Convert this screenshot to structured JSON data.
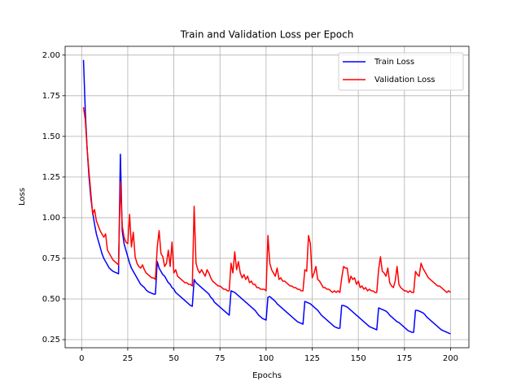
{
  "chart_data": {
    "type": "line",
    "title": "Train and Validation Loss per Epoch",
    "x_label": "Epochs",
    "y_label": "Loss",
    "x": [
      1,
      2,
      3,
      4,
      5,
      6,
      7,
      8,
      9,
      10,
      11,
      12,
      13,
      14,
      15,
      16,
      17,
      18,
      19,
      20,
      21,
      22,
      23,
      24,
      25,
      26,
      27,
      28,
      29,
      30,
      31,
      32,
      33,
      34,
      35,
      36,
      37,
      38,
      39,
      40,
      41,
      42,
      43,
      44,
      45,
      46,
      47,
      48,
      49,
      50,
      51,
      52,
      53,
      54,
      55,
      56,
      57,
      58,
      59,
      60,
      61,
      62,
      63,
      64,
      65,
      66,
      67,
      68,
      69,
      70,
      71,
      72,
      73,
      74,
      75,
      76,
      77,
      78,
      79,
      80,
      81,
      82,
      83,
      84,
      85,
      86,
      87,
      88,
      89,
      90,
      91,
      92,
      93,
      94,
      95,
      96,
      97,
      98,
      99,
      100,
      101,
      102,
      103,
      104,
      105,
      106,
      107,
      108,
      109,
      110,
      111,
      112,
      113,
      114,
      115,
      116,
      117,
      118,
      119,
      120,
      121,
      122,
      123,
      124,
      125,
      126,
      127,
      128,
      129,
      130,
      131,
      132,
      133,
      134,
      135,
      136,
      137,
      138,
      139,
      140,
      141,
      142,
      143,
      144,
      145,
      146,
      147,
      148,
      149,
      150,
      151,
      152,
      153,
      154,
      155,
      156,
      157,
      158,
      159,
      160,
      161,
      162,
      163,
      164,
      165,
      166,
      167,
      168,
      169,
      170,
      171,
      172,
      173,
      174,
      175,
      176,
      177,
      178,
      179,
      180,
      181,
      182,
      183,
      184,
      185,
      186,
      187,
      188,
      189,
      190,
      191,
      192,
      193,
      194,
      195,
      196,
      197,
      198,
      199,
      200
    ],
    "series": [
      {
        "name": "Train Loss",
        "color": "#0000ff",
        "values": [
          1.97,
          1.65,
          1.42,
          1.25,
          1.12,
          1.03,
          0.96,
          0.9,
          0.86,
          0.82,
          0.78,
          0.75,
          0.73,
          0.71,
          0.69,
          0.68,
          0.67,
          0.665,
          0.66,
          0.655,
          1.39,
          0.92,
          0.84,
          0.8,
          0.76,
          0.72,
          0.69,
          0.67,
          0.65,
          0.63,
          0.61,
          0.59,
          0.58,
          0.57,
          0.555,
          0.545,
          0.54,
          0.535,
          0.53,
          0.53,
          0.73,
          0.69,
          0.67,
          0.65,
          0.64,
          0.62,
          0.6,
          0.59,
          0.57,
          0.56,
          0.54,
          0.53,
          0.52,
          0.51,
          0.5,
          0.49,
          0.48,
          0.47,
          0.46,
          0.455,
          0.62,
          0.6,
          0.59,
          0.58,
          0.57,
          0.56,
          0.55,
          0.54,
          0.53,
          0.51,
          0.5,
          0.48,
          0.47,
          0.46,
          0.45,
          0.44,
          0.43,
          0.42,
          0.41,
          0.4,
          0.55,
          0.545,
          0.54,
          0.53,
          0.52,
          0.51,
          0.5,
          0.49,
          0.48,
          0.47,
          0.46,
          0.45,
          0.44,
          0.43,
          0.415,
          0.4,
          0.39,
          0.38,
          0.375,
          0.37,
          0.51,
          0.515,
          0.505,
          0.495,
          0.485,
          0.47,
          0.46,
          0.45,
          0.44,
          0.43,
          0.42,
          0.41,
          0.4,
          0.39,
          0.38,
          0.37,
          0.36,
          0.355,
          0.35,
          0.345,
          0.485,
          0.48,
          0.475,
          0.47,
          0.46,
          0.45,
          0.44,
          0.43,
          0.415,
          0.4,
          0.39,
          0.38,
          0.37,
          0.36,
          0.35,
          0.34,
          0.33,
          0.325,
          0.32,
          0.32,
          0.46,
          0.46,
          0.455,
          0.45,
          0.44,
          0.43,
          0.42,
          0.41,
          0.4,
          0.39,
          0.38,
          0.37,
          0.36,
          0.35,
          0.34,
          0.33,
          0.325,
          0.32,
          0.315,
          0.31,
          0.445,
          0.44,
          0.435,
          0.43,
          0.425,
          0.415,
          0.4,
          0.39,
          0.38,
          0.37,
          0.36,
          0.355,
          0.345,
          0.335,
          0.325,
          0.315,
          0.305,
          0.3,
          0.295,
          0.295,
          0.43,
          0.43,
          0.425,
          0.42,
          0.415,
          0.405,
          0.39,
          0.38,
          0.37,
          0.36,
          0.35,
          0.34,
          0.33,
          0.32,
          0.31,
          0.305,
          0.3,
          0.295,
          0.29,
          0.285
        ]
      },
      {
        "name": "Validation Loss",
        "color": "#ff0000",
        "values": [
          1.68,
          1.6,
          1.42,
          1.28,
          1.15,
          1.02,
          1.05,
          0.98,
          0.95,
          0.92,
          0.9,
          0.88,
          0.9,
          0.8,
          0.78,
          0.76,
          0.74,
          0.73,
          0.72,
          0.71,
          1.22,
          0.95,
          0.88,
          0.85,
          0.84,
          1.02,
          0.82,
          0.91,
          0.76,
          0.72,
          0.7,
          0.69,
          0.71,
          0.68,
          0.66,
          0.65,
          0.64,
          0.63,
          0.63,
          0.62,
          0.82,
          0.92,
          0.78,
          0.76,
          0.7,
          0.72,
          0.8,
          0.7,
          0.85,
          0.66,
          0.68,
          0.64,
          0.63,
          0.62,
          0.61,
          0.6,
          0.6,
          0.59,
          0.59,
          0.58,
          1.07,
          0.72,
          0.68,
          0.66,
          0.68,
          0.66,
          0.64,
          0.68,
          0.66,
          0.63,
          0.61,
          0.6,
          0.59,
          0.58,
          0.58,
          0.57,
          0.56,
          0.56,
          0.55,
          0.55,
          0.72,
          0.66,
          0.79,
          0.68,
          0.73,
          0.66,
          0.63,
          0.65,
          0.62,
          0.64,
          0.6,
          0.61,
          0.59,
          0.59,
          0.57,
          0.57,
          0.56,
          0.56,
          0.56,
          0.55,
          0.89,
          0.72,
          0.68,
          0.66,
          0.64,
          0.69,
          0.62,
          0.63,
          0.61,
          0.61,
          0.6,
          0.59,
          0.58,
          0.58,
          0.57,
          0.57,
          0.56,
          0.56,
          0.55,
          0.55,
          0.68,
          0.67,
          0.89,
          0.84,
          0.63,
          0.66,
          0.7,
          0.62,
          0.61,
          0.59,
          0.57,
          0.57,
          0.56,
          0.56,
          0.55,
          0.54,
          0.55,
          0.54,
          0.55,
          0.54,
          0.63,
          0.7,
          0.69,
          0.69,
          0.6,
          0.64,
          0.62,
          0.63,
          0.59,
          0.61,
          0.57,
          0.58,
          0.56,
          0.57,
          0.55,
          0.56,
          0.55,
          0.55,
          0.54,
          0.54,
          0.68,
          0.76,
          0.67,
          0.66,
          0.64,
          0.69,
          0.6,
          0.58,
          0.57,
          0.61,
          0.7,
          0.59,
          0.57,
          0.56,
          0.55,
          0.55,
          0.54,
          0.55,
          0.54,
          0.54,
          0.67,
          0.65,
          0.64,
          0.72,
          0.69,
          0.67,
          0.65,
          0.63,
          0.62,
          0.61,
          0.6,
          0.59,
          0.58,
          0.58,
          0.57,
          0.56,
          0.55,
          0.54,
          0.55,
          0.54
        ]
      }
    ],
    "xlim": [
      -8.95,
      209.95
    ],
    "xticks": [
      0,
      25,
      50,
      75,
      100,
      125,
      150,
      175,
      200
    ],
    "ylim": [
      0.2,
      2.054
    ],
    "yticks": [
      {
        "value": 0.25,
        "label": "0.25"
      },
      {
        "value": 0.5,
        "label": "0.50"
      },
      {
        "value": 0.75,
        "label": "0.75"
      },
      {
        "value": 1,
        "label": "1.00"
      },
      {
        "value": 1.25,
        "label": "1.25"
      },
      {
        "value": 1.5,
        "label": "1.50"
      },
      {
        "value": 1.75,
        "label": "1.75"
      },
      {
        "value": 2,
        "label": "2.00"
      }
    ],
    "grid": true,
    "legend": "upper right"
  }
}
